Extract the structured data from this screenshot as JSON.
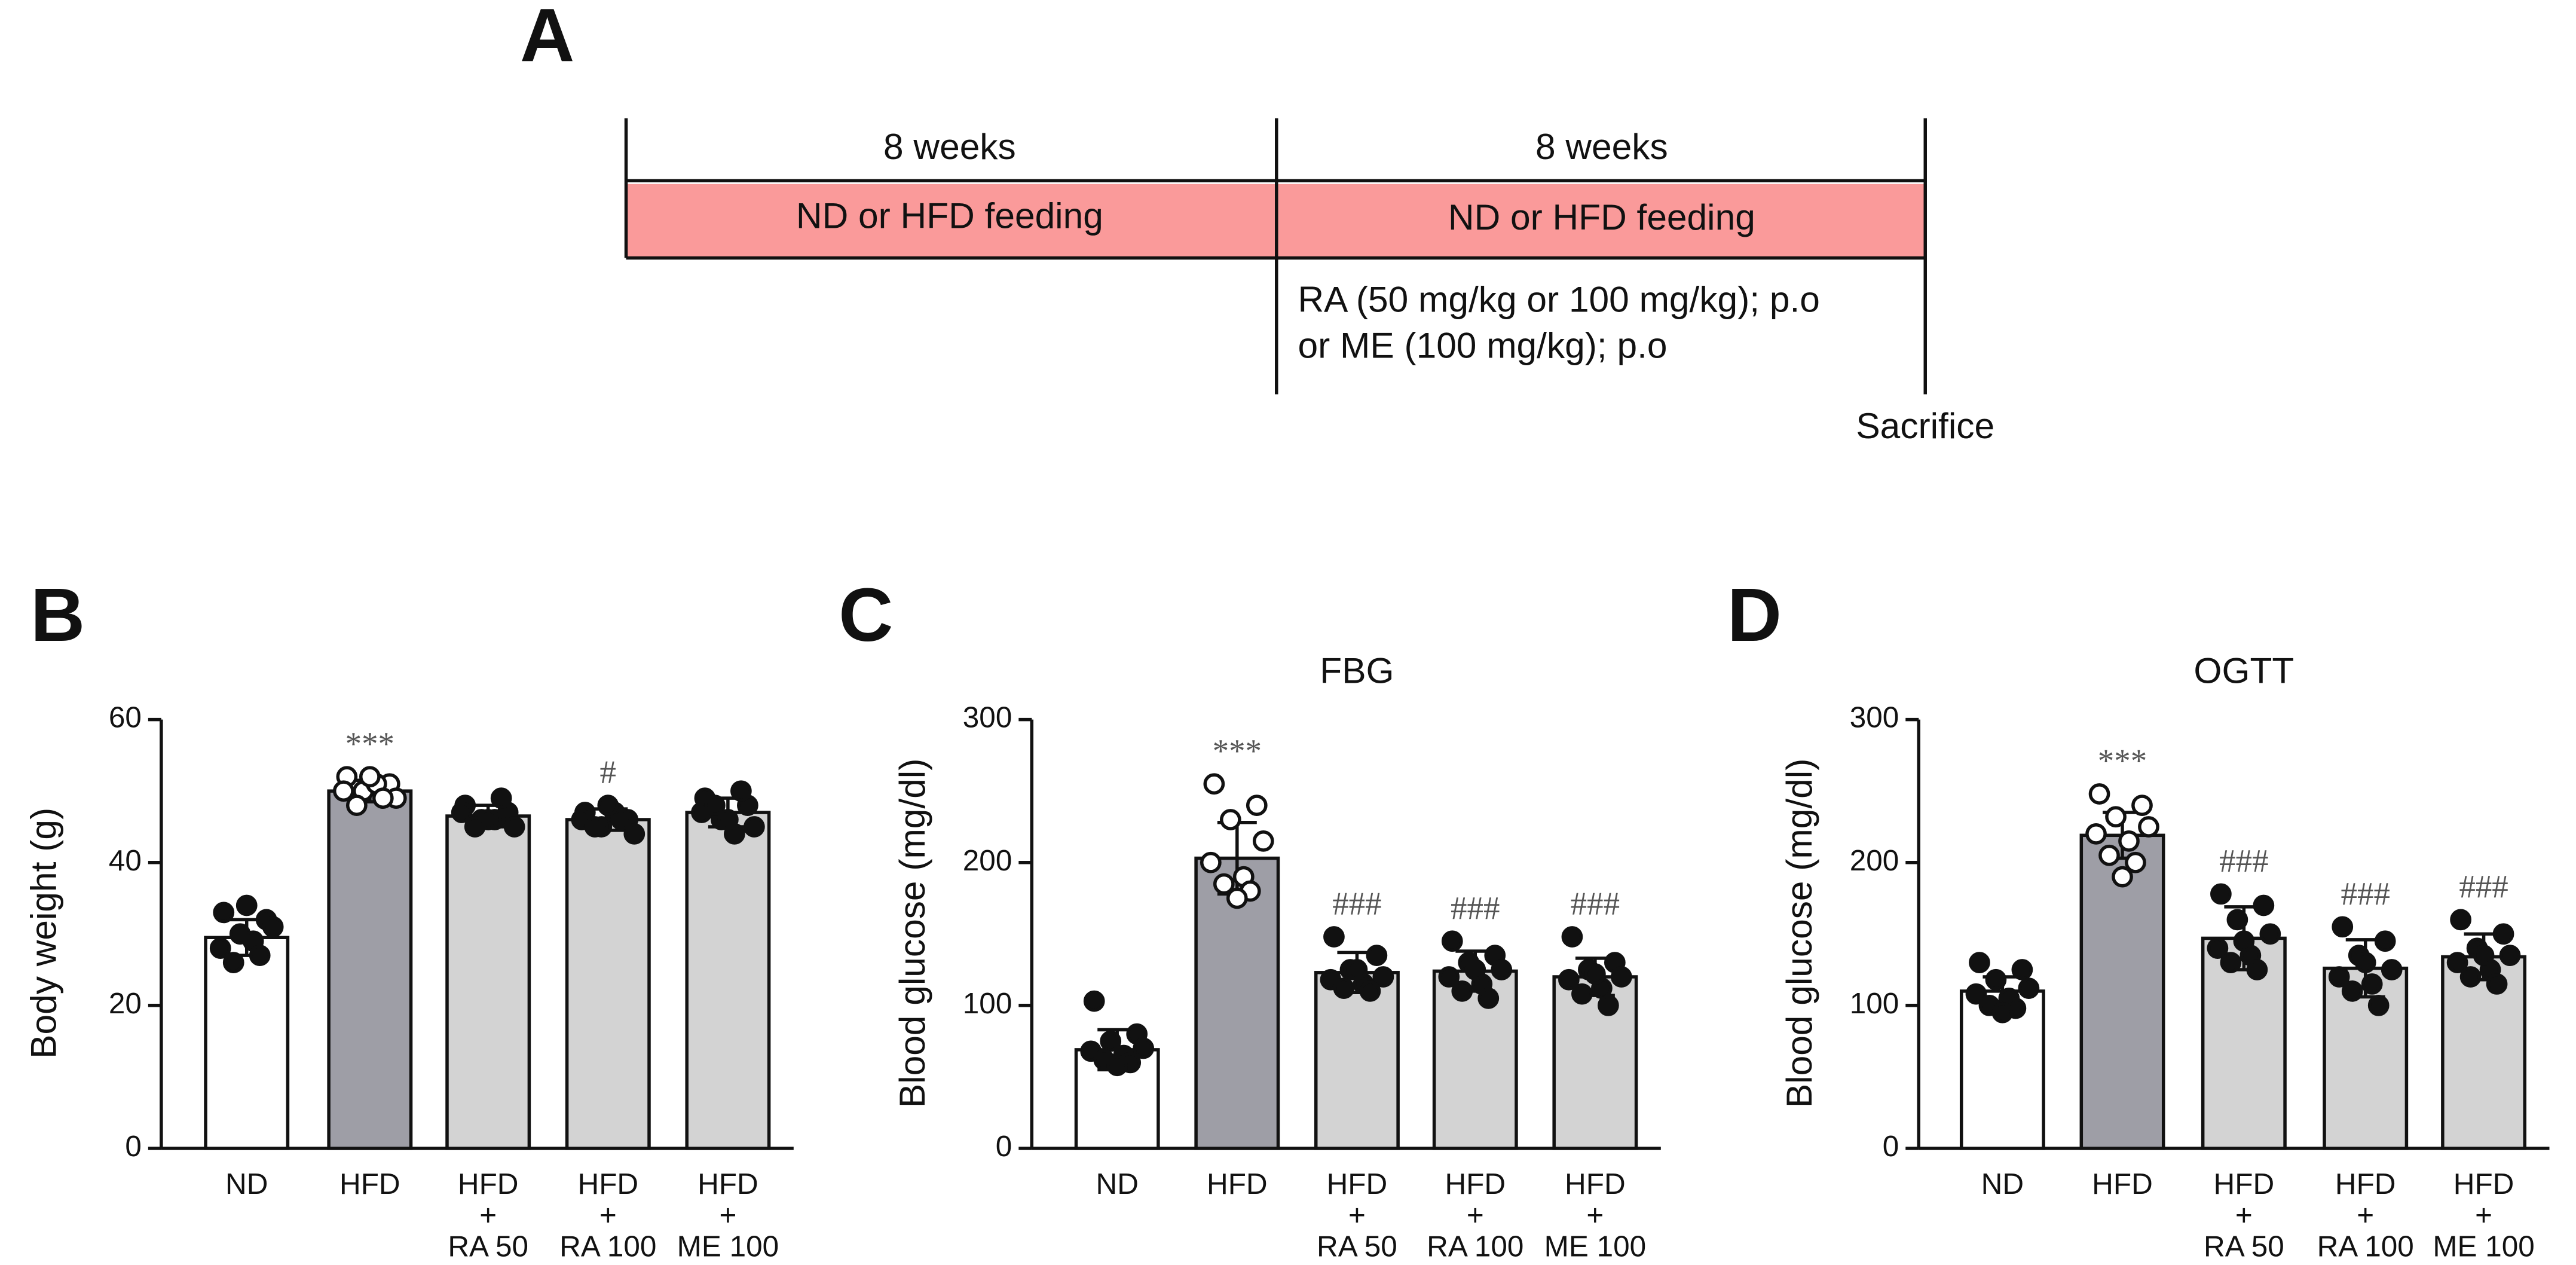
{
  "panel_a": {
    "label": "A",
    "periods": [
      {
        "duration": "8 weeks",
        "feeding": "ND or HFD feeding"
      },
      {
        "duration": "8 weeks",
        "feeding": "ND or HFD feeding"
      }
    ],
    "treatment": [
      "RA (50 mg/kg or 100 mg/kg); p.o",
      "or ME (100 mg/kg); p.o"
    ],
    "endpoint": "Sacrifice"
  },
  "chart_data": [
    {
      "type": "bar",
      "panel_label": "B",
      "title": null,
      "y_label": "Body weight (g)",
      "categories": [
        [
          "ND"
        ],
        [
          "HFD"
        ],
        [
          "HFD",
          "+",
          "RA 50"
        ],
        [
          "HFD",
          "+",
          "RA 100"
        ],
        [
          "HFD",
          "+",
          "ME 100"
        ]
      ],
      "values": [
        29.5,
        50,
        46.5,
        46,
        47
      ],
      "errors": [
        2.5,
        1.5,
        1.5,
        1.5,
        2
      ],
      "points": [
        [
          33,
          32,
          30,
          31,
          28,
          29,
          26,
          27,
          34
        ],
        [
          52,
          51,
          50,
          49,
          50,
          51,
          48,
          49,
          52
        ],
        [
          48,
          47,
          46,
          45,
          47,
          46,
          45,
          49,
          46
        ],
        [
          47,
          46,
          45,
          44,
          46,
          47,
          45,
          46,
          48
        ],
        [
          49,
          48,
          46,
          45,
          47,
          44,
          48,
          50,
          46
        ]
      ],
      "colors": [
        "#ffffff",
        "#9e9ea6",
        "#d3d3d3",
        "#d3d3d3",
        "#d3d3d3"
      ],
      "open_points": [
        false,
        true,
        false,
        false,
        false
      ],
      "annotations": [
        null,
        "***",
        null,
        "#",
        null
      ],
      "ylim": [
        0,
        60
      ],
      "yticks": [
        0,
        20,
        40,
        60
      ]
    },
    {
      "type": "bar",
      "panel_label": "C",
      "title": "FBG",
      "y_label": "Blood glucose (mg/dl)",
      "categories": [
        [
          "ND"
        ],
        [
          "HFD"
        ],
        [
          "HFD",
          "+",
          "RA 50"
        ],
        [
          "HFD",
          "+",
          "RA 100"
        ],
        [
          "HFD",
          "+",
          "ME 100"
        ]
      ],
      "values": [
        69,
        203,
        123,
        124,
        120
      ],
      "errors": [
        14,
        25,
        14,
        14,
        13
      ],
      "points": [
        [
          103,
          80,
          75,
          70,
          68,
          65,
          62,
          60,
          58
        ],
        [
          255,
          240,
          230,
          215,
          200,
          190,
          185,
          180,
          175
        ],
        [
          148,
          135,
          125,
          120,
          118,
          115,
          112,
          110,
          125
        ],
        [
          145,
          135,
          130,
          125,
          120,
          115,
          110,
          105,
          125
        ],
        [
          148,
          130,
          125,
          120,
          118,
          112,
          108,
          100,
          122
        ]
      ],
      "colors": [
        "#ffffff",
        "#9e9ea6",
        "#d3d3d3",
        "#d3d3d3",
        "#d3d3d3"
      ],
      "open_points": [
        false,
        true,
        false,
        false,
        false
      ],
      "annotations": [
        null,
        "***",
        "###",
        "###",
        "###"
      ],
      "ylim": [
        0,
        300
      ],
      "yticks": [
        0,
        100,
        200,
        300
      ]
    },
    {
      "type": "bar",
      "panel_label": "D",
      "title": "OGTT",
      "y_label": "Blood glucose (mg/dl)",
      "categories": [
        [
          "ND"
        ],
        [
          "HFD"
        ],
        [
          "HFD",
          "+",
          "RA 50"
        ],
        [
          "HFD",
          "+",
          "RA 100"
        ],
        [
          "HFD",
          "+",
          "ME 100"
        ]
      ],
      "values": [
        110,
        219,
        147,
        126,
        134
      ],
      "errors": [
        10,
        16,
        22,
        20,
        16
      ],
      "points": [
        [
          130,
          125,
          118,
          112,
          108,
          105,
          100,
          98,
          95
        ],
        [
          248,
          240,
          232,
          225,
          220,
          215,
          205,
          200,
          190
        ],
        [
          178,
          170,
          160,
          150,
          140,
          135,
          130,
          125,
          145
        ],
        [
          155,
          145,
          135,
          125,
          120,
          115,
          110,
          100,
          130
        ],
        [
          160,
          150,
          140,
          135,
          130,
          125,
          120,
          115,
          135
        ]
      ],
      "colors": [
        "#ffffff",
        "#9e9ea6",
        "#d3d3d3",
        "#d3d3d3",
        "#d3d3d3"
      ],
      "open_points": [
        false,
        true,
        false,
        false,
        false
      ],
      "annotations": [
        null,
        "***",
        "###",
        "###",
        "###"
      ],
      "ylim": [
        0,
        300
      ],
      "yticks": [
        0,
        100,
        200,
        300
      ]
    }
  ]
}
